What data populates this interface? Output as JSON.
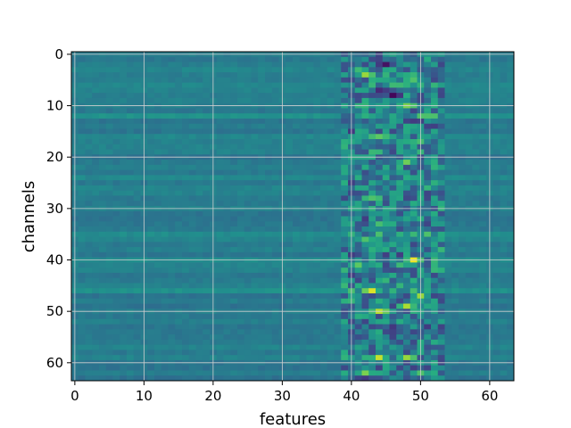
{
  "chart_data": {
    "type": "heatmap",
    "title": "",
    "xlabel": "features",
    "ylabel": "channels",
    "n_cols": 64,
    "n_rows": 64,
    "xlim": [
      -0.5,
      63.5
    ],
    "ylim": [
      63.5,
      -0.5
    ],
    "y_inverted": true,
    "colormap": "viridis",
    "grid": true,
    "x_ticks": [
      0,
      10,
      20,
      30,
      40,
      50,
      60
    ],
    "y_ticks": [
      0,
      10,
      20,
      30,
      40,
      50,
      60
    ],
    "value_range": [
      0,
      1
    ],
    "baseline_value": 0.42,
    "active_band_columns": [
      39,
      53
    ],
    "hotspots": [
      {
        "row": 4,
        "col": 42,
        "value": 0.85
      },
      {
        "row": 2,
        "col": 45,
        "value": 0.05
      },
      {
        "row": 5,
        "col": 49,
        "value": 0.72
      },
      {
        "row": 7,
        "col": 44,
        "value": 0.12
      },
      {
        "row": 8,
        "col": 46,
        "value": 0.02
      },
      {
        "row": 10,
        "col": 48,
        "value": 0.8
      },
      {
        "row": 16,
        "col": 44,
        "value": 0.75
      },
      {
        "row": 17,
        "col": 50,
        "value": 0.7
      },
      {
        "row": 21,
        "col": 48,
        "value": 0.78
      },
      {
        "row": 28,
        "col": 43,
        "value": 0.72
      },
      {
        "row": 33,
        "col": 44,
        "value": 0.7
      },
      {
        "row": 36,
        "col": 42,
        "value": 0.72
      },
      {
        "row": 40,
        "col": 49,
        "value": 0.98
      },
      {
        "row": 41,
        "col": 41,
        "value": 0.75
      },
      {
        "row": 46,
        "col": 43,
        "value": 0.95
      },
      {
        "row": 47,
        "col": 50,
        "value": 0.85
      },
      {
        "row": 49,
        "col": 48,
        "value": 0.88
      },
      {
        "row": 50,
        "col": 44,
        "value": 0.9
      },
      {
        "row": 59,
        "col": 44,
        "value": 0.92
      },
      {
        "row": 59,
        "col": 48,
        "value": 0.85
      },
      {
        "row": 62,
        "col": 42,
        "value": 0.8
      },
      {
        "row": 62,
        "col": 50,
        "value": 0.72
      }
    ],
    "bright_rows": [
      6,
      12,
      16,
      24,
      35,
      40,
      46,
      59
    ]
  }
}
